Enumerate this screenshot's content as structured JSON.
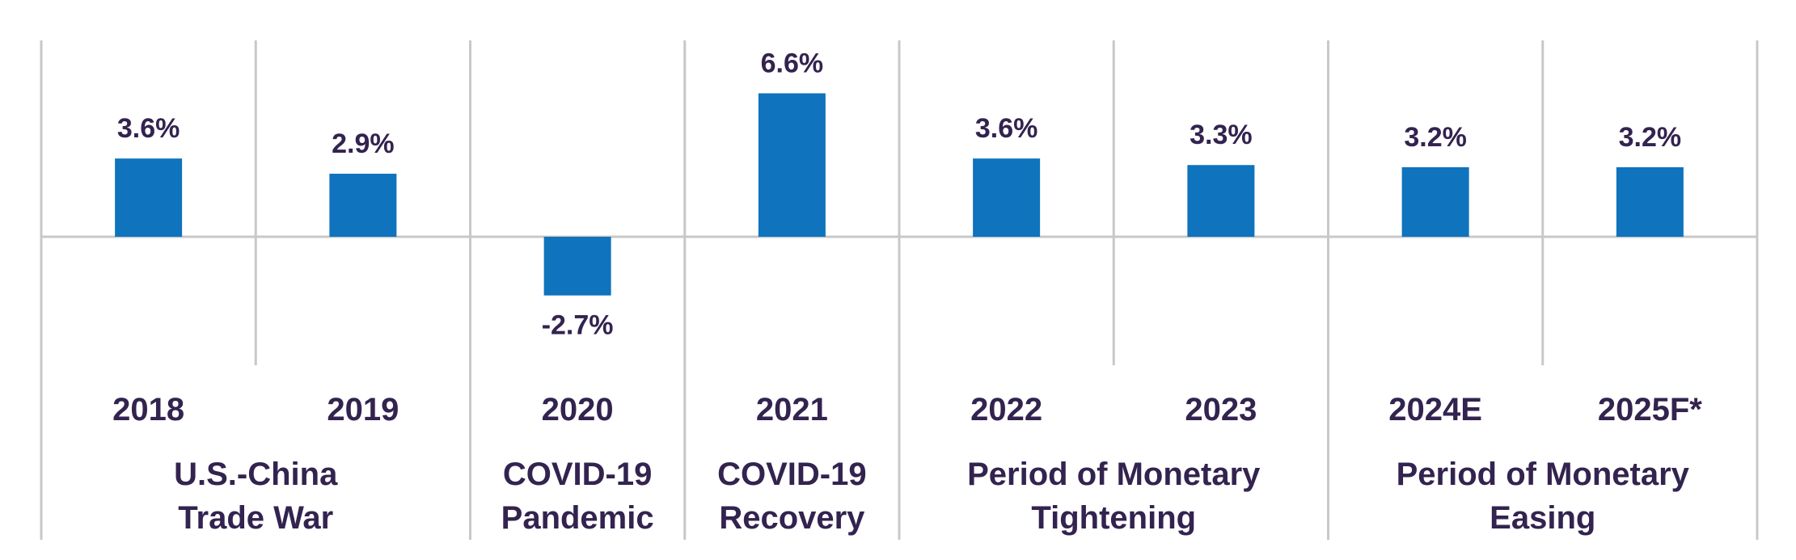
{
  "chart_data": {
    "type": "bar",
    "categories": [
      "2018",
      "2019",
      "2020",
      "2021",
      "2022",
      "2023",
      "2024E",
      "2025F*"
    ],
    "values": [
      3.6,
      2.9,
      -2.7,
      6.6,
      3.6,
      3.3,
      3.2,
      3.2
    ],
    "value_labels": [
      "3.6%",
      "2.9%",
      "-2.7%",
      "6.6%",
      "3.6%",
      "3.3%",
      "3.2%",
      "3.2%"
    ],
    "groups": [
      {
        "lines": [
          "U.S.-China",
          "Trade War"
        ],
        "span": [
          0,
          1
        ]
      },
      {
        "lines": [
          "COVID-19",
          "Pandemic"
        ],
        "span": [
          2,
          2
        ]
      },
      {
        "lines": [
          "COVID-19",
          "Recovery"
        ],
        "span": [
          3,
          3
        ]
      },
      {
        "lines": [
          "Period of Monetary",
          "Tightening"
        ],
        "span": [
          4,
          5
        ]
      },
      {
        "lines": [
          "Period of Monetary",
          "Easing"
        ],
        "span": [
          6,
          7
        ]
      }
    ],
    "title": "",
    "xlabel": "",
    "ylabel": "",
    "bar_color": "#0f73bd",
    "label_color": "#33234f",
    "grid_color": "#c8c8c8"
  }
}
